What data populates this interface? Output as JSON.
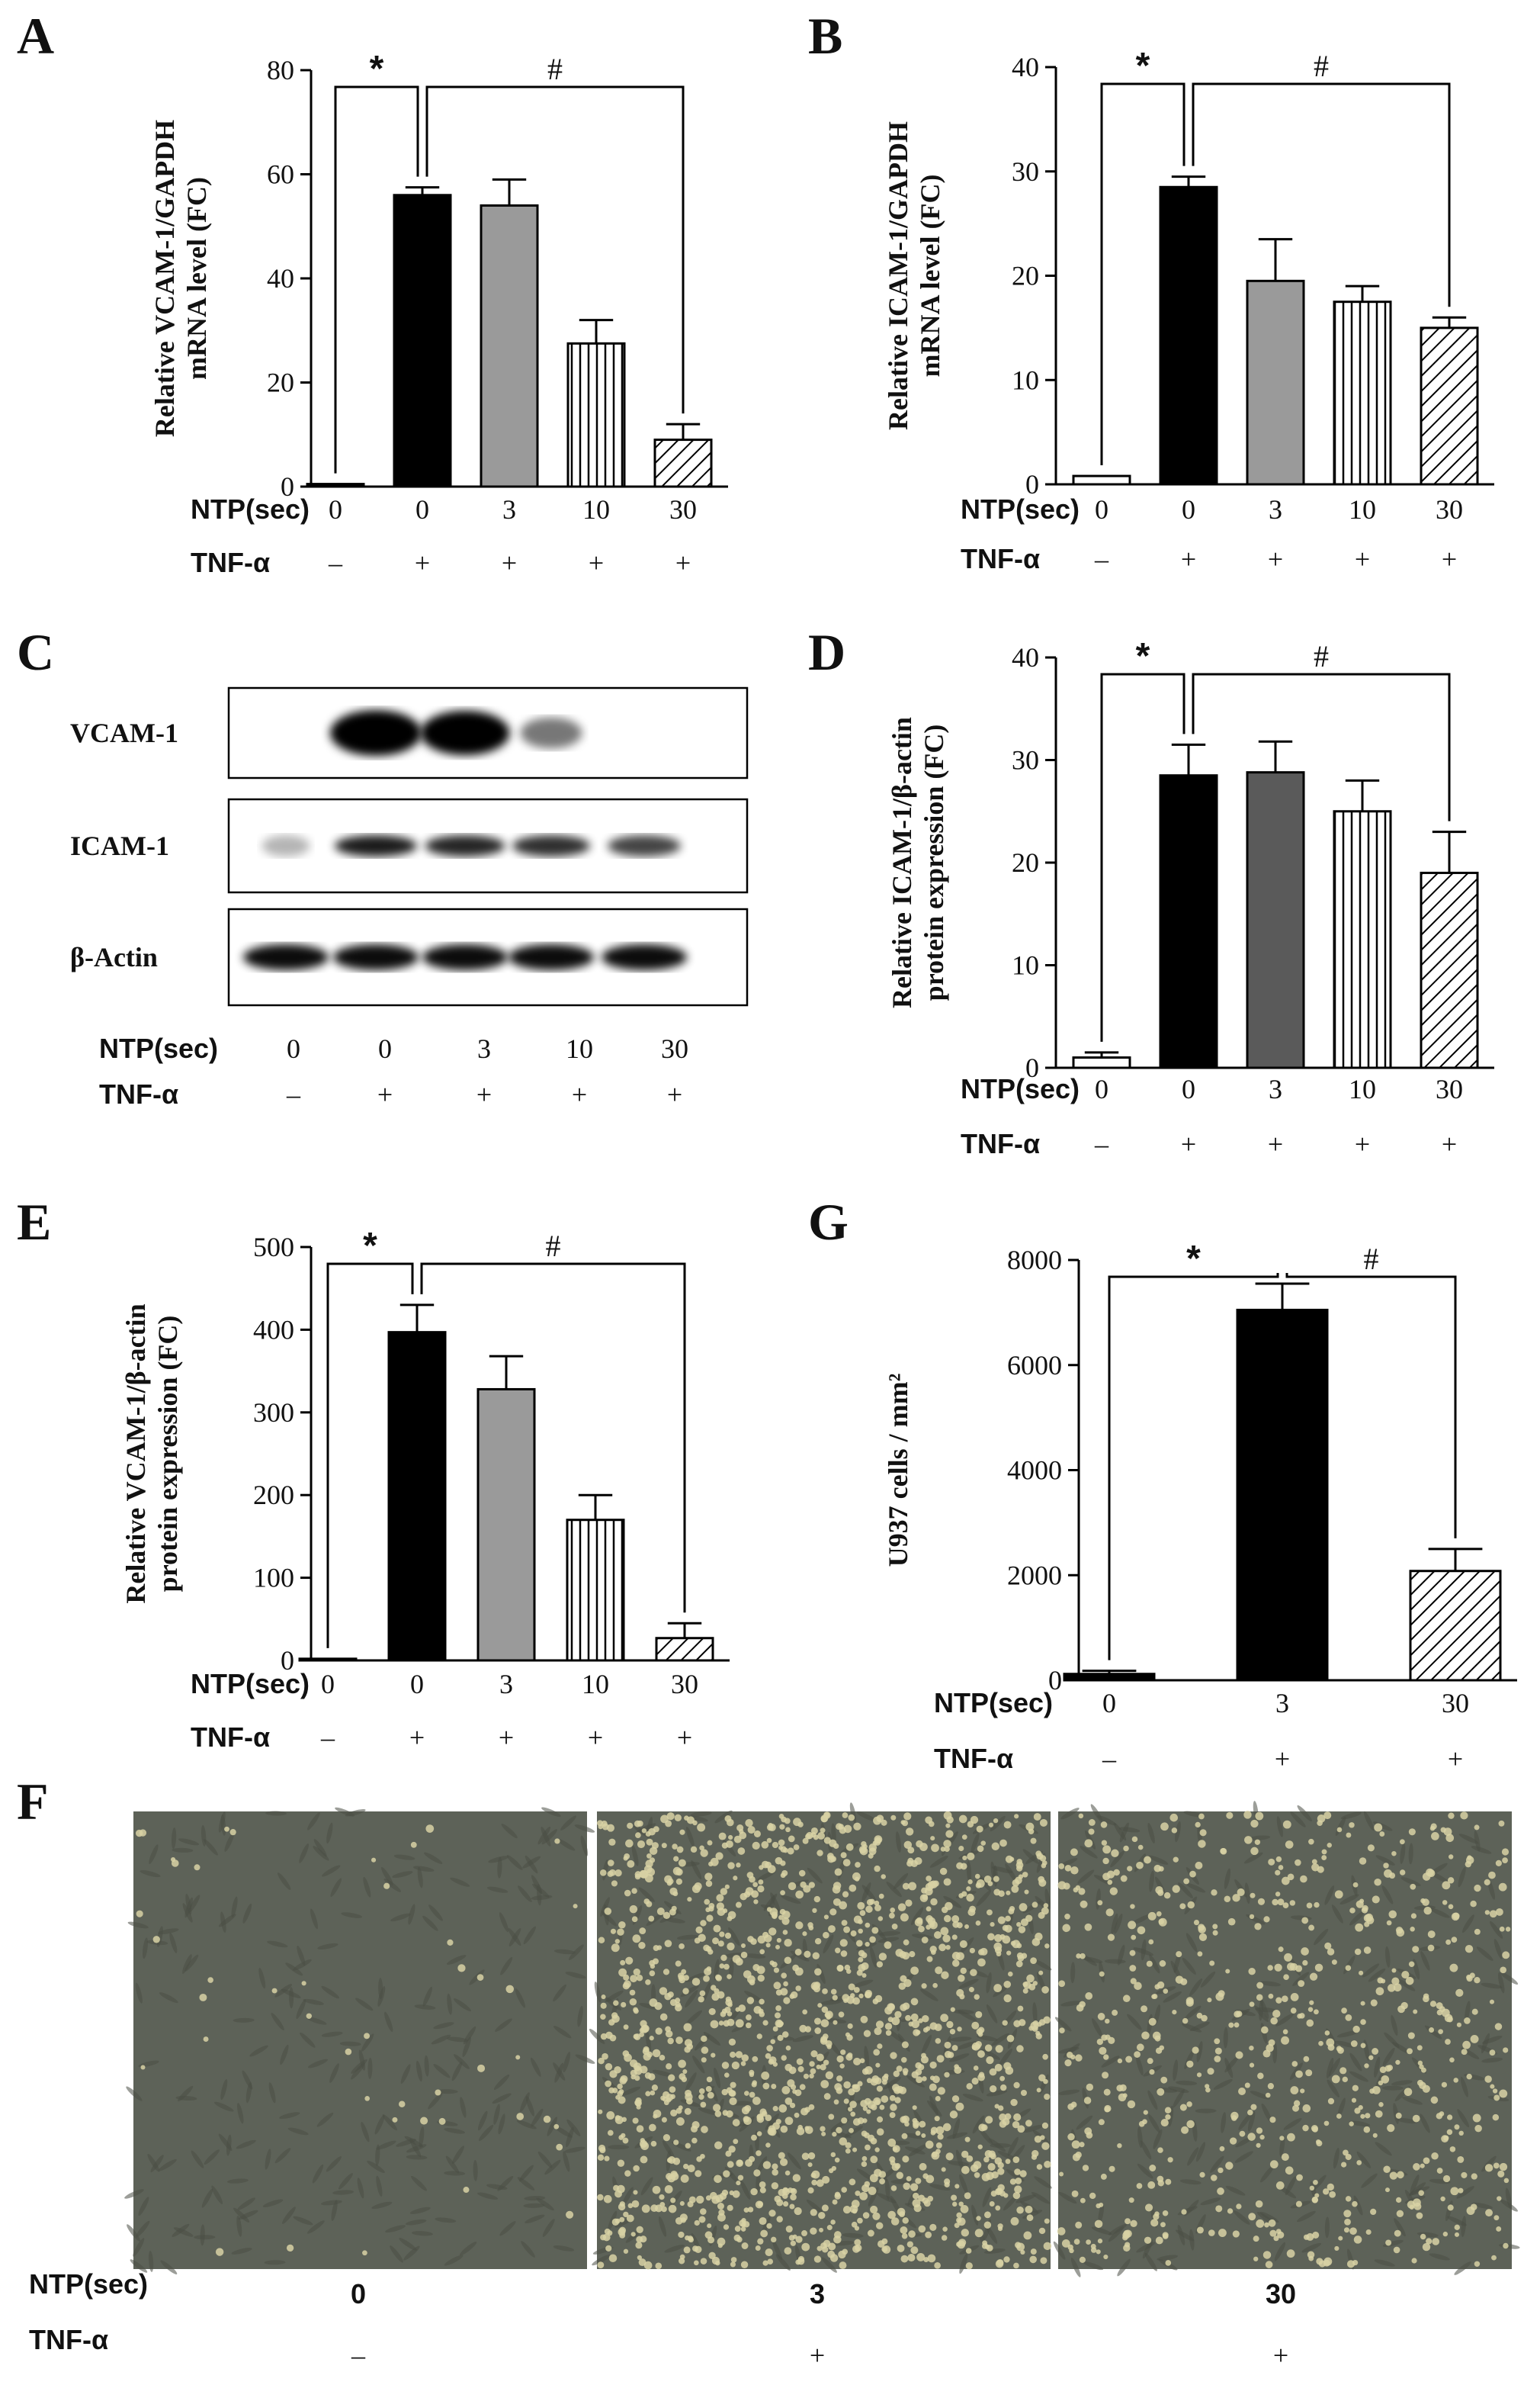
{
  "colors": {
    "black": "#000000",
    "gray": "#9a9a9a",
    "darkgray": "#5a5a5a",
    "white": "#ffffff",
    "photo_bg": "#5d6258",
    "adhered_cell": "#d8d2a4"
  },
  "chart_data": [
    {
      "id": "A",
      "type": "bar",
      "letter": "A",
      "ylabel_line1": "Relative VCAM-1/GAPDH",
      "ylabel_line2": "mRNA level (FC)",
      "ylim": [
        0,
        80
      ],
      "yticks": [
        "0",
        "20",
        "40",
        "60",
        "80"
      ],
      "values": [
        0.5,
        56,
        54,
        27.5,
        9
      ],
      "errors": [
        0,
        1.5,
        5,
        4.5,
        3
      ],
      "fills": [
        "black",
        "black",
        "gray",
        "vlines",
        "hatch"
      ],
      "row_label_1": "NTP(sec)",
      "conditions_1": [
        "0",
        "0",
        "3",
        "10",
        "30"
      ],
      "row_label_2": "TNF-α",
      "conditions_2": [
        "–",
        "+",
        "+",
        "+",
        "+"
      ],
      "sig_star": "*",
      "sig_hash": "#",
      "sig_star_bars": [
        0,
        1
      ],
      "sig_hash_bars": [
        1,
        4
      ]
    },
    {
      "id": "B",
      "type": "bar",
      "letter": "B",
      "ylabel_line1": "Relative ICAM-1/GAPDH",
      "ylabel_line2": "mRNA level (FC)",
      "ylim": [
        0,
        40
      ],
      "yticks": [
        "0",
        "10",
        "20",
        "30",
        "40"
      ],
      "values": [
        0.8,
        28.5,
        19.5,
        17.5,
        15
      ],
      "errors": [
        0,
        1,
        4,
        1.5,
        1
      ],
      "fills": [
        "white",
        "black",
        "gray",
        "vlines",
        "hatch"
      ],
      "row_label_1": "NTP(sec)",
      "conditions_1": [
        "0",
        "0",
        "3",
        "10",
        "30"
      ],
      "row_label_2": "TNF-α",
      "conditions_2": [
        "–",
        "+",
        "+",
        "+",
        "+"
      ],
      "sig_star": "*",
      "sig_hash": "#",
      "sig_star_bars": [
        0,
        1
      ],
      "sig_hash_bars": [
        1,
        4
      ]
    },
    {
      "id": "D",
      "type": "bar",
      "letter": "D",
      "ylabel_line1": "Relative ICAM-1/β-actin",
      "ylabel_line2": "protein expression (FC)",
      "ylim": [
        0,
        40
      ],
      "yticks": [
        "0",
        "10",
        "20",
        "30",
        "40"
      ],
      "values": [
        1,
        28.5,
        28.8,
        25,
        19
      ],
      "errors": [
        0.5,
        3,
        3,
        3,
        4
      ],
      "fills": [
        "white",
        "black",
        "darkgray",
        "vlines",
        "hatch"
      ],
      "row_label_1": "NTP(sec)",
      "conditions_1": [
        "0",
        "0",
        "3",
        "10",
        "30"
      ],
      "row_label_2": "TNF-α",
      "conditions_2": [
        "–",
        "+",
        "+",
        "+",
        "+"
      ],
      "sig_star": "*",
      "sig_hash": "#",
      "sig_star_bars": [
        0,
        1
      ],
      "sig_hash_bars": [
        1,
        4
      ]
    },
    {
      "id": "E",
      "type": "bar",
      "letter": "E",
      "ylabel_line1": "Relative VCAM-1/β-actin",
      "ylabel_line2": "protein expression (FC)",
      "ylim": [
        0,
        500
      ],
      "yticks": [
        "0",
        "100",
        "200",
        "300",
        "400",
        "500"
      ],
      "values": [
        2,
        397,
        328,
        170,
        27
      ],
      "errors": [
        0,
        33,
        40,
        30,
        18
      ],
      "fills": [
        "black",
        "black",
        "gray",
        "vlines",
        "hatch"
      ],
      "row_label_1": "NTP(sec)",
      "conditions_1": [
        "0",
        "0",
        "3",
        "10",
        "30"
      ],
      "row_label_2": "TNF-α",
      "conditions_2": [
        "–",
        "+",
        "+",
        "+",
        "+"
      ],
      "sig_star": "*",
      "sig_hash": "#",
      "sig_star_bars": [
        0,
        1
      ],
      "sig_hash_bars": [
        1,
        4
      ]
    },
    {
      "id": "G",
      "type": "bar",
      "letter": "G",
      "ylabel_line1": "U937 cells / mm²",
      "ylabel_line2": "",
      "ylim": [
        0,
        8000
      ],
      "yticks": [
        "0",
        "2000",
        "4000",
        "6000",
        "8000"
      ],
      "values": [
        120,
        7050,
        2080
      ],
      "errors": [
        60,
        500,
        420
      ],
      "fills": [
        "black",
        "black",
        "hatch"
      ],
      "row_label_1": "NTP(sec)",
      "conditions_1": [
        "0",
        "3",
        "30"
      ],
      "row_label_2": "TNF-α",
      "conditions_2": [
        "–",
        "+",
        "+"
      ],
      "sig_star": "*",
      "sig_hash": "#",
      "sig_star_bars": [
        0,
        1
      ],
      "sig_hash_bars": [
        1,
        2
      ]
    }
  ],
  "blot": {
    "letter": "C",
    "rows": [
      {
        "label": "VCAM-1",
        "bands": [
          0,
          1.0,
          0.95,
          0.35,
          0
        ]
      },
      {
        "label": "ICAM-1",
        "bands": [
          0.05,
          0.8,
          0.75,
          0.7,
          0.6
        ]
      },
      {
        "label": "β-Actin",
        "bands": [
          1.0,
          1.0,
          1.0,
          1.0,
          1.0
        ]
      }
    ],
    "row_label_1": "NTP(sec)",
    "conditions_1": [
      "0",
      "0",
      "3",
      "10",
      "30"
    ],
    "row_label_2": "TNF-α",
    "conditions_2": [
      "–",
      "+",
      "+",
      "+",
      "+"
    ]
  },
  "photos": {
    "letter": "F",
    "row_label_1": "NTP(sec)",
    "conditions_1": [
      "0",
      "3",
      "30"
    ],
    "row_label_2": "TNF-α",
    "conditions_2": [
      "–",
      "+",
      "+"
    ],
    "adhesion_density": [
      0.03,
      1.0,
      0.45
    ]
  }
}
